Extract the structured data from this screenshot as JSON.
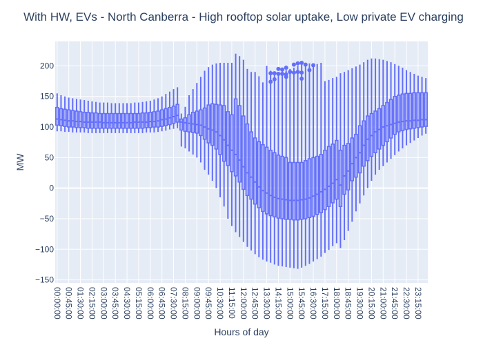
{
  "chart_data": {
    "type": "box",
    "title": "With HW, EVs - North Canberra - High rooftop solar uptake, Low private EV charging",
    "xlabel": "Hours of day",
    "ylabel": "MW",
    "ylim": [
      -155,
      240
    ],
    "y_ticks": [
      -150,
      -100,
      -50,
      0,
      50,
      100,
      150,
      200
    ],
    "x_tick_labels": [
      "00:00:00",
      "00:45:00",
      "01:30:00",
      "02:15:00",
      "03:00:00",
      "03:45:00",
      "04:30:00",
      "05:15:00",
      "06:00:00",
      "06:45:00",
      "07:30:00",
      "08:15:00",
      "09:00:00",
      "09:45:00",
      "10:30:00",
      "11:15:00",
      "12:00:00",
      "12:45:00",
      "13:30:00",
      "14:15:00",
      "15:00:00",
      "15:45:00",
      "16:30:00",
      "17:15:00",
      "18:00:00",
      "18:45:00",
      "19:30:00",
      "20:15:00",
      "21:00:00",
      "21:45:00",
      "22:30:00",
      "23:15:00"
    ],
    "interval_minutes": 15,
    "grid": true,
    "colors": {
      "box": "#636efa",
      "plot_bg": "#e5ecf6",
      "grid": "#ffffff",
      "text": "#2a3f5f"
    },
    "boxes_summary": "96 intervals (00:00 to 23:45, 15 min); values [min, q1, median, q3, max] in MW",
    "boxes": [
      [
        93,
        103,
        113,
        132,
        155
      ],
      [
        93,
        102,
        112,
        130,
        152
      ],
      [
        92,
        101,
        111,
        129,
        150
      ],
      [
        92,
        100,
        110,
        128,
        148
      ],
      [
        91,
        100,
        110,
        127,
        147
      ],
      [
        91,
        99,
        109,
        126,
        146
      ],
      [
        91,
        99,
        109,
        125,
        145
      ],
      [
        91,
        99,
        108,
        124,
        144
      ],
      [
        90,
        98,
        108,
        124,
        143
      ],
      [
        90,
        98,
        108,
        123,
        142
      ],
      [
        90,
        98,
        108,
        123,
        141
      ],
      [
        90,
        98,
        108,
        122,
        140
      ],
      [
        90,
        98,
        107,
        122,
        140
      ],
      [
        90,
        98,
        107,
        122,
        140
      ],
      [
        90,
        98,
        107,
        122,
        139
      ],
      [
        90,
        98,
        107,
        122,
        139
      ],
      [
        90,
        98,
        107,
        122,
        139
      ],
      [
        90,
        98,
        107,
        122,
        139
      ],
      [
        90,
        98,
        107,
        122,
        139
      ],
      [
        90,
        98,
        107,
        122,
        139
      ],
      [
        90,
        98,
        108,
        122,
        140
      ],
      [
        90,
        98,
        108,
        122,
        140
      ],
      [
        90,
        98,
        108,
        123,
        141
      ],
      [
        91,
        99,
        108,
        123,
        142
      ],
      [
        91,
        99,
        109,
        124,
        143
      ],
      [
        91,
        100,
        109,
        125,
        145
      ],
      [
        92,
        100,
        110,
        126,
        147
      ],
      [
        93,
        101,
        112,
        128,
        150
      ],
      [
        94,
        102,
        113,
        130,
        154
      ],
      [
        96,
        104,
        115,
        132,
        158
      ],
      [
        97,
        106,
        117,
        134,
        162
      ],
      [
        98,
        108,
        119,
        137,
        165
      ],
      [
        68,
        95,
        108,
        113,
        122
      ],
      [
        65,
        93,
        107,
        115,
        133
      ],
      [
        60,
        92,
        106,
        120,
        152
      ],
      [
        55,
        91,
        105,
        124,
        162
      ],
      [
        50,
        90,
        104,
        126,
        172
      ],
      [
        42,
        86,
        103,
        128,
        182
      ],
      [
        30,
        80,
        100,
        131,
        192
      ],
      [
        22,
        74,
        97,
        136,
        198
      ],
      [
        12,
        70,
        95,
        138,
        202
      ],
      [
        0,
        64,
        92,
        137,
        204
      ],
      [
        -15,
        55,
        86,
        136,
        205
      ],
      [
        -30,
        44,
        79,
        135,
        205
      ],
      [
        -50,
        37,
        70,
        125,
        205
      ],
      [
        -62,
        27,
        62,
        120,
        205
      ],
      [
        -72,
        20,
        55,
        146,
        220
      ],
      [
        -80,
        10,
        46,
        135,
        216
      ],
      [
        -88,
        -2,
        35,
        118,
        210
      ],
      [
        -96,
        -12,
        25,
        105,
        195
      ],
      [
        -102,
        -18,
        18,
        92,
        190
      ],
      [
        -108,
        -26,
        10,
        82,
        190
      ],
      [
        -113,
        -32,
        2,
        76,
        183
      ],
      [
        -117,
        -38,
        -4,
        71,
        173
      ],
      [
        -120,
        -42,
        -8,
        67,
        200
      ],
      [
        -122,
        -45,
        -12,
        62,
        192
      ],
      [
        -125,
        -47,
        -15,
        58,
        190
      ],
      [
        -127,
        -49,
        -17,
        54,
        190
      ],
      [
        -128,
        -50,
        -18,
        52,
        192
      ],
      [
        -129,
        -51,
        -19,
        50,
        193
      ],
      [
        -130,
        -51,
        -20,
        42,
        195
      ],
      [
        -131,
        -52,
        -20,
        42,
        197
      ],
      [
        -132,
        -52,
        -20,
        42,
        200
      ],
      [
        -130,
        -51,
        -19,
        42,
        202
      ],
      [
        -127,
        -50,
        -18,
        45,
        205
      ],
      [
        -124,
        -48,
        -16,
        48,
        204
      ],
      [
        -120,
        -46,
        -13,
        50,
        203
      ],
      [
        -116,
        -43,
        -10,
        52,
        203
      ],
      [
        -112,
        -40,
        -6,
        55,
        205
      ],
      [
        -106,
        -35,
        -2,
        62,
        175
      ],
      [
        -101,
        -30,
        3,
        68,
        177
      ],
      [
        -95,
        -24,
        8,
        72,
        180
      ],
      [
        -90,
        -18,
        14,
        78,
        182
      ],
      [
        -98,
        -30,
        5,
        62,
        188
      ],
      [
        -85,
        -10,
        20,
        70,
        190
      ],
      [
        -70,
        -3,
        28,
        73,
        193
      ],
      [
        -55,
        12,
        40,
        82,
        196
      ],
      [
        -38,
        18,
        50,
        88,
        199
      ],
      [
        -25,
        25,
        58,
        102,
        202
      ],
      [
        -12,
        36,
        70,
        110,
        206
      ],
      [
        0,
        45,
        80,
        118,
        210
      ],
      [
        12,
        52,
        86,
        122,
        212
      ],
      [
        22,
        58,
        92,
        126,
        212
      ],
      [
        30,
        64,
        96,
        130,
        211
      ],
      [
        36,
        70,
        100,
        135,
        210
      ],
      [
        42,
        76,
        102,
        140,
        208
      ],
      [
        48,
        82,
        104,
        145,
        206
      ],
      [
        54,
        88,
        106,
        150,
        203
      ],
      [
        60,
        92,
        108,
        152,
        200
      ],
      [
        65,
        94,
        109,
        154,
        197
      ],
      [
        70,
        96,
        110,
        155,
        193
      ],
      [
        74,
        97,
        110,
        155,
        190
      ],
      [
        78,
        98,
        111,
        156,
        187
      ],
      [
        82,
        99,
        111,
        156,
        184
      ],
      [
        86,
        100,
        112,
        156,
        182
      ],
      [
        89,
        101,
        112,
        156,
        180
      ]
    ],
    "outliers": [
      {
        "interval": 55,
        "values": [
          188,
          174
        ]
      },
      {
        "interval": 56,
        "values": [
          188,
          178
        ]
      },
      {
        "interval": 57,
        "values": [
          195,
          187
        ]
      },
      {
        "interval": 58,
        "values": [
          194,
          187
        ]
      },
      {
        "interval": 59,
        "values": [
          197,
          186,
          182
        ]
      },
      {
        "interval": 60,
        "values": [
          190
        ]
      },
      {
        "interval": 61,
        "values": [
          202,
          189
        ]
      },
      {
        "interval": 62,
        "values": [
          204,
          190
        ]
      },
      {
        "interval": 63,
        "values": [
          205,
          189,
          179
        ]
      },
      {
        "interval": 64,
        "values": [
          202
        ]
      },
      {
        "interval": 65,
        "values": [
          193
        ]
      },
      {
        "interval": 66,
        "values": [
          201
        ]
      }
    ]
  }
}
